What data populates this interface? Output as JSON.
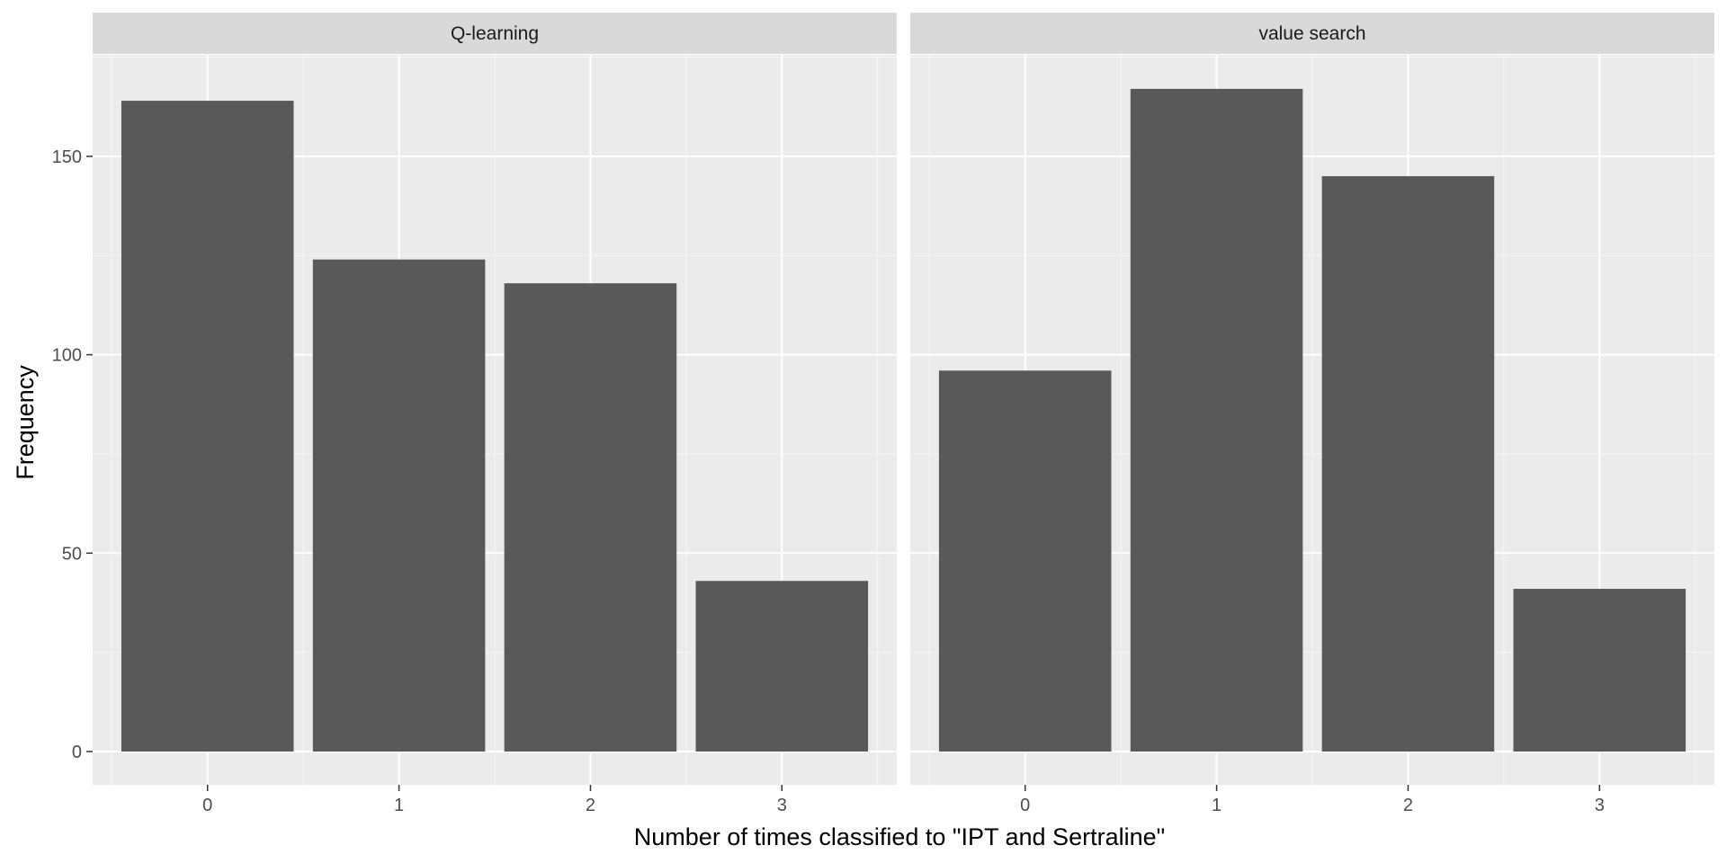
{
  "chart_data": {
    "type": "bar",
    "xlabel": "Number of times classified to \"IPT and Sertraline\"",
    "ylabel": "Frequency",
    "ylim": [
      0,
      177
    ],
    "y_ticks": [
      0,
      50,
      100,
      150
    ],
    "y_tick_labels": [
      "0",
      "50",
      "100",
      "150"
    ],
    "categories": [
      "0",
      "1",
      "2",
      "3"
    ],
    "grid": true,
    "panels": [
      {
        "name": "Q-learning",
        "values": [
          164,
          124,
          118,
          43
        ]
      },
      {
        "name": "value search",
        "values": [
          96,
          167,
          145,
          41
        ]
      }
    ]
  },
  "colors": {
    "panel_background": "#EBEBEB",
    "strip_background": "#D9D9D9",
    "grid_major": "#FFFFFF",
    "bar_fill": "#595959",
    "tick_text": "#4D4D4D",
    "axis_tick": "#333333"
  }
}
